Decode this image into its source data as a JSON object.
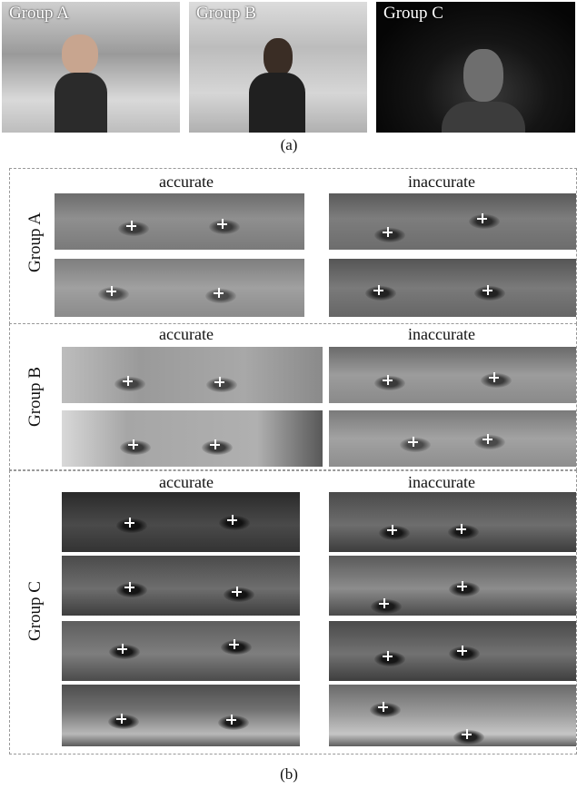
{
  "panel_a": {
    "photos": [
      {
        "label": "Group A"
      },
      {
        "label": "Group B"
      },
      {
        "label": "Group C"
      }
    ],
    "caption": "(a)"
  },
  "panel_b": {
    "caption": "(b)",
    "col_accurate": "accurate",
    "col_inaccurate": "inaccurate",
    "groups": [
      {
        "label": "Group A"
      },
      {
        "label": "Group B"
      },
      {
        "label": "Group C"
      }
    ]
  },
  "colors": {
    "dashed_border": "#999999",
    "marker": "#ffffff"
  },
  "icons": [
    "gaze-marker-cross"
  ]
}
